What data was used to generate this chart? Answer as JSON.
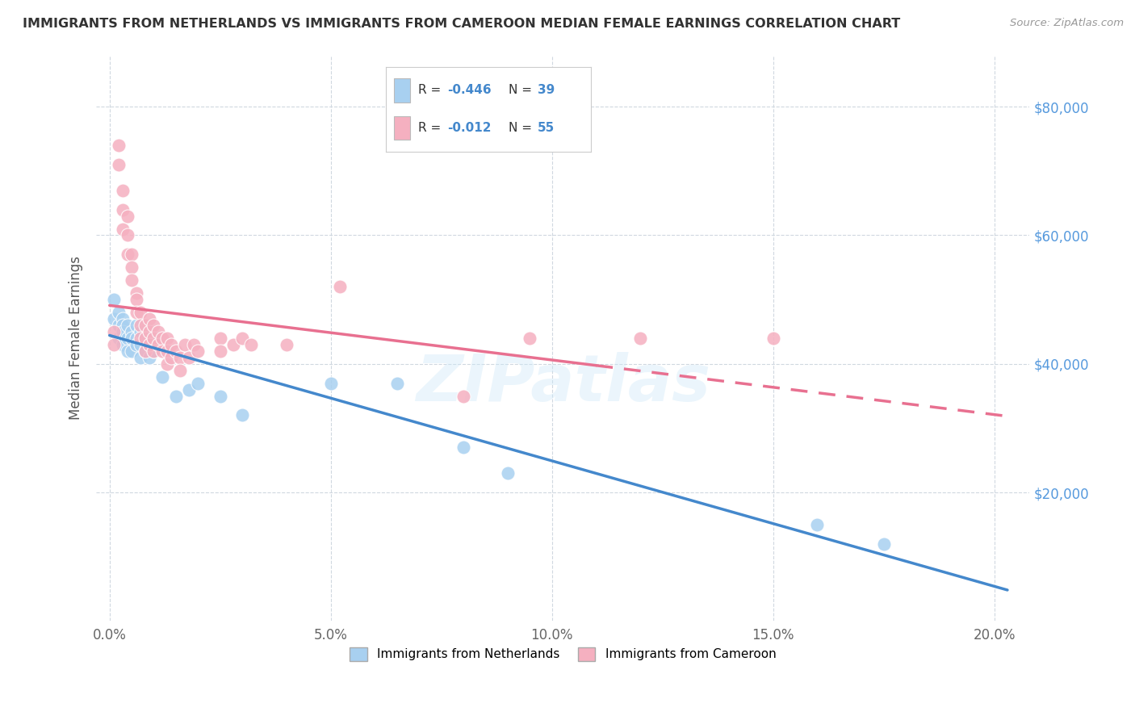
{
  "title": "IMMIGRANTS FROM NETHERLANDS VS IMMIGRANTS FROM CAMEROON MEDIAN FEMALE EARNINGS CORRELATION CHART",
  "source": "Source: ZipAtlas.com",
  "ylabel": "Median Female Earnings",
  "xlabel_ticks": [
    "0.0%",
    "5.0%",
    "10.0%",
    "15.0%",
    "20.0%"
  ],
  "xlabel_vals": [
    0.0,
    0.05,
    0.1,
    0.15,
    0.2
  ],
  "ylabel_ticks": [
    "$20,000",
    "$40,000",
    "$60,000",
    "$80,000"
  ],
  "ylabel_vals": [
    20000,
    40000,
    60000,
    80000
  ],
  "xlim": [
    -0.003,
    0.208
  ],
  "ylim": [
    0,
    88000
  ],
  "netherlands_R": "-0.446",
  "netherlands_N": "39",
  "cameroon_R": "-0.012",
  "cameroon_N": "55",
  "netherlands_color": "#a8d0f0",
  "cameroon_color": "#f5b0c0",
  "netherlands_line_color": "#4488cc",
  "cameroon_line_color": "#e87090",
  "watermark": "ZIPatlas",
  "background_color": "#ffffff",
  "grid_color": "#d0d8e0",
  "netherlands_x": [
    0.001,
    0.001,
    0.002,
    0.002,
    0.002,
    0.003,
    0.003,
    0.003,
    0.003,
    0.004,
    0.004,
    0.004,
    0.005,
    0.005,
    0.005,
    0.006,
    0.006,
    0.006,
    0.007,
    0.007,
    0.007,
    0.008,
    0.008,
    0.009,
    0.009,
    0.01,
    0.01,
    0.012,
    0.015,
    0.018,
    0.02,
    0.025,
    0.03,
    0.05,
    0.065,
    0.08,
    0.09,
    0.16,
    0.175
  ],
  "netherlands_y": [
    50000,
    47000,
    48000,
    46000,
    44000,
    47000,
    46000,
    45000,
    43000,
    46000,
    44000,
    42000,
    45000,
    44000,
    42000,
    46000,
    44000,
    43000,
    45000,
    43000,
    41000,
    44000,
    42000,
    43000,
    41000,
    44000,
    42000,
    38000,
    35000,
    36000,
    37000,
    35000,
    32000,
    37000,
    37000,
    27000,
    23000,
    15000,
    12000
  ],
  "cameroon_x": [
    0.001,
    0.001,
    0.002,
    0.002,
    0.003,
    0.003,
    0.003,
    0.004,
    0.004,
    0.004,
    0.005,
    0.005,
    0.005,
    0.006,
    0.006,
    0.006,
    0.007,
    0.007,
    0.007,
    0.008,
    0.008,
    0.008,
    0.009,
    0.009,
    0.009,
    0.01,
    0.01,
    0.01,
    0.011,
    0.011,
    0.012,
    0.012,
    0.013,
    0.013,
    0.013,
    0.014,
    0.014,
    0.015,
    0.016,
    0.016,
    0.017,
    0.018,
    0.019,
    0.02,
    0.025,
    0.025,
    0.028,
    0.03,
    0.032,
    0.04,
    0.052,
    0.08,
    0.095,
    0.12,
    0.15
  ],
  "cameroon_y": [
    45000,
    43000,
    74000,
    71000,
    67000,
    64000,
    61000,
    63000,
    60000,
    57000,
    57000,
    55000,
    53000,
    51000,
    50000,
    48000,
    48000,
    46000,
    44000,
    46000,
    44000,
    42000,
    47000,
    45000,
    43000,
    46000,
    44000,
    42000,
    45000,
    43000,
    44000,
    42000,
    44000,
    42000,
    40000,
    43000,
    41000,
    42000,
    41000,
    39000,
    43000,
    41000,
    43000,
    42000,
    44000,
    42000,
    43000,
    44000,
    43000,
    43000,
    52000,
    35000,
    44000,
    44000,
    44000
  ]
}
